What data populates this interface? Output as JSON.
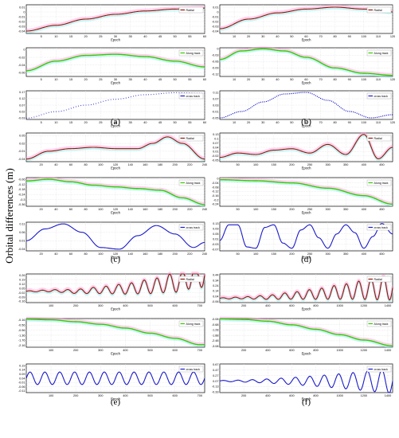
{
  "figure": {
    "ylabel": "Orbital differences (m)",
    "colors": {
      "radial": "#8b1a0a",
      "along": "#33cc00",
      "cross": "#1a1acc",
      "fuzz_pink": "#ff9ad6",
      "fuzz_cyan": "#7fe8e8",
      "grid": "#d8d8d8"
    }
  },
  "chart_data": [
    {
      "type": "line",
      "panel_label": "(a)",
      "subplots": [
        {
          "series": "Radial",
          "xlabel": "Epoch",
          "xlim": [
            0,
            60
          ],
          "xticks": [
            "5",
            "10",
            "15",
            "20",
            "25",
            "30",
            "35",
            "40",
            "45",
            "50",
            "55",
            "60"
          ],
          "yticks": [
            "0.01",
            "0",
            "-0.01",
            "-0.02",
            "-0.03",
            "-0.04"
          ],
          "ylim": [
            -0.045,
            0.015
          ],
          "x": [
            0,
            10,
            20,
            30,
            40,
            50,
            60
          ],
          "y": [
            -0.04,
            -0.028,
            -0.015,
            -0.005,
            0.002,
            0.006,
            0.008
          ]
        },
        {
          "series": "Along track",
          "xlabel": "Epoch",
          "xlim": [
            0,
            60
          ],
          "xticks": [
            "5",
            "10",
            "15",
            "20",
            "25",
            "30",
            "35",
            "40",
            "45",
            "50",
            "55",
            "60"
          ],
          "yticks": [
            "0",
            "-0.02",
            "-0.04",
            "-0.06"
          ],
          "ylim": [
            -0.07,
            0.005
          ],
          "x": [
            0,
            10,
            20,
            30,
            40,
            50,
            60
          ],
          "y": [
            -0.055,
            -0.03,
            -0.015,
            -0.012,
            -0.018,
            -0.03,
            -0.045
          ]
        },
        {
          "series": "cross track",
          "xlabel": "Epoch",
          "xlim": [
            0,
            60
          ],
          "xticks": [
            "5",
            "10",
            "15",
            "20",
            "25",
            "30",
            "35",
            "40",
            "45",
            "50",
            "55",
            "60"
          ],
          "yticks": [
            "0.17",
            "0.12",
            "0.07",
            "0.02",
            "-0.03"
          ],
          "ylim": [
            -0.04,
            0.18
          ],
          "x": [
            0,
            10,
            20,
            30,
            40,
            50,
            60
          ],
          "y": [
            -0.03,
            0.02,
            0.07,
            0.115,
            0.15,
            0.165,
            0.16
          ]
        }
      ]
    },
    {
      "type": "line",
      "panel_label": "(b)",
      "subplots": [
        {
          "series": "Radial",
          "xlabel": "Epoch",
          "xlim": [
            0,
            120
          ],
          "xticks": [
            "10",
            "20",
            "30",
            "40",
            "50",
            "60",
            "70",
            "80",
            "90",
            "100",
            "110",
            "120"
          ],
          "yticks": [
            "0.01",
            "0",
            "-0.01",
            "-0.02",
            "-0.03",
            "-0.04"
          ],
          "ylim": [
            -0.045,
            0.015
          ],
          "x": [
            0,
            20,
            40,
            60,
            80,
            100,
            120
          ],
          "y": [
            -0.035,
            -0.015,
            -0.002,
            0.006,
            0.01,
            0.006,
            0.0
          ]
        },
        {
          "series": "Along track",
          "xlabel": "Epoch",
          "xlim": [
            0,
            120
          ],
          "xticks": [
            "10",
            "20",
            "30",
            "40",
            "50",
            "60",
            "70",
            "80",
            "90",
            "100",
            "110",
            "120"
          ],
          "yticks": [
            "0",
            "-0.03",
            "-0.06",
            "-0.09",
            "-0.12"
          ],
          "ylim": [
            -0.13,
            0.005
          ],
          "x": [
            0,
            15,
            30,
            45,
            60,
            80,
            100,
            120
          ],
          "y": [
            -0.05,
            -0.01,
            0.0,
            -0.01,
            -0.04,
            -0.09,
            -0.115,
            -0.125
          ]
        },
        {
          "series": "cross track",
          "xlabel": "Epoch",
          "xlim": [
            0,
            120
          ],
          "xticks": [
            "10",
            "20",
            "30",
            "40",
            "50",
            "60",
            "70",
            "80",
            "90",
            "100",
            "110",
            "120"
          ],
          "yticks": [
            "0.11",
            "0.07",
            "0.03",
            "-0.01",
            "-0.05"
          ],
          "ylim": [
            -0.06,
            0.12
          ],
          "x": [
            0,
            15,
            30,
            45,
            60,
            75,
            90,
            105,
            120
          ],
          "y": [
            -0.05,
            -0.01,
            0.05,
            0.1,
            0.11,
            0.06,
            -0.01,
            -0.05,
            -0.03
          ]
        }
      ]
    },
    {
      "type": "line",
      "panel_label": "(c)",
      "subplots": [
        {
          "series": "Radial",
          "xlabel": "Epoch",
          "xlim": [
            0,
            240
          ],
          "xticks": [
            "20",
            "40",
            "60",
            "80",
            "100",
            "120",
            "140",
            "160",
            "180",
            "200",
            "220",
            "240"
          ],
          "yticks": [
            "0.05",
            "0.02",
            "-0.01",
            "-0.04"
          ],
          "ylim": [
            -0.05,
            0.06
          ],
          "x": [
            0,
            30,
            60,
            90,
            120,
            150,
            170,
            190,
            210,
            240
          ],
          "y": [
            -0.04,
            -0.01,
            0.0,
            0.005,
            0.0,
            0.0,
            0.02,
            0.045,
            0.02,
            -0.04
          ]
        },
        {
          "series": "Along track",
          "xlabel": "Epoch",
          "xlim": [
            0,
            240
          ],
          "xticks": [
            "20",
            "40",
            "60",
            "80",
            "100",
            "120",
            "140",
            "160",
            "180",
            "200",
            "220",
            "240"
          ],
          "yticks": [
            "-0.06",
            "-0.12",
            "-0.18",
            "-0.24",
            "-0.3",
            "-0.36"
          ],
          "ylim": [
            -0.38,
            -0.04
          ],
          "x": [
            0,
            30,
            60,
            90,
            120,
            150,
            180,
            210,
            240
          ],
          "y": [
            -0.08,
            -0.06,
            -0.09,
            -0.13,
            -0.15,
            -0.17,
            -0.19,
            -0.28,
            -0.36
          ]
        },
        {
          "series": "cross track",
          "xlabel": "Epoch",
          "xlim": [
            0,
            240
          ],
          "xticks": [
            "20",
            "40",
            "60",
            "80",
            "100",
            "120",
            "140",
            "160",
            "180",
            "200",
            "220",
            "240"
          ],
          "yticks": [
            "0.11",
            "0.06",
            "0.01",
            "-0.04"
          ],
          "ylim": [
            -0.05,
            0.12
          ],
          "x": [
            0,
            25,
            50,
            75,
            100,
            125,
            150,
            175,
            200,
            225,
            240
          ],
          "y": [
            0.01,
            0.08,
            0.11,
            0.06,
            -0.03,
            -0.04,
            0.04,
            0.1,
            0.05,
            -0.03,
            0.0
          ]
        }
      ]
    },
    {
      "type": "line",
      "panel_label": "(d)",
      "subplots": [
        {
          "series": "Radial",
          "xlabel": "Epoch",
          "xlim": [
            0,
            480
          ],
          "xticks": [
            "50",
            "100",
            "150",
            "200",
            "250",
            "300",
            "350",
            "400",
            "450"
          ],
          "yticks": [
            "0.13",
            "0.1",
            "0.07",
            "0.04",
            "0.01",
            "-0.02",
            "-0.05"
          ],
          "ylim": [
            -0.06,
            0.14
          ],
          "x": [
            0,
            50,
            100,
            150,
            200,
            250,
            300,
            350,
            400,
            440,
            480
          ],
          "y": [
            -0.03,
            0.0,
            -0.01,
            0.02,
            0.03,
            0.0,
            0.06,
            -0.01,
            0.13,
            -0.04,
            0.04
          ]
        },
        {
          "series": "Along track",
          "xlabel": "Epoch",
          "xlim": [
            0,
            480
          ],
          "xticks": [
            "50",
            "100",
            "150",
            "200",
            "250",
            "300",
            "350",
            "400",
            "450"
          ],
          "yticks": [
            "0",
            "-0.04",
            "-0.08",
            "-0.12",
            "-0.16",
            "-0.2",
            "-0.24"
          ],
          "ylim": [
            -0.26,
            0.01
          ],
          "x": [
            0,
            100,
            200,
            300,
            400,
            480
          ],
          "y": [
            -0.01,
            -0.02,
            -0.04,
            -0.09,
            -0.16,
            -0.24
          ]
        },
        {
          "series": "cross track",
          "xlabel": "Epoch",
          "xlim": [
            0,
            480
          ],
          "xticks": [
            "50",
            "100",
            "150",
            "200",
            "250",
            "300",
            "350",
            "400",
            "450"
          ],
          "yticks": [
            "0.13",
            "0.09",
            "0.05",
            "0.01",
            "-0.03",
            "-0.07"
          ],
          "ylim": [
            -0.08,
            0.14
          ],
          "x": [
            0,
            25,
            50,
            75,
            100,
            125,
            150,
            175,
            200,
            225,
            250,
            275,
            300,
            325,
            350,
            375,
            400,
            425,
            450,
            480
          ],
          "y": [
            0.0,
            0.12,
            0.12,
            -0.05,
            -0.06,
            0.1,
            0.12,
            -0.02,
            -0.06,
            0.08,
            0.12,
            0.02,
            -0.06,
            0.05,
            0.12,
            0.06,
            -0.06,
            0.03,
            0.13,
            0.05
          ]
        }
      ]
    },
    {
      "type": "line",
      "panel_label": "(e)",
      "subplots": [
        {
          "series": "Radial",
          "xlabel": "Epoch",
          "xlim": [
            0,
            720
          ],
          "xticks": [
            "100",
            "200",
            "300",
            "400",
            "500",
            "600",
            "700"
          ],
          "yticks": [
            "0.26",
            "0.19",
            "0.12",
            "0.05",
            "-0.02",
            "-0.09",
            "-0.16"
          ],
          "ylim": [
            -0.18,
            0.28
          ],
          "x": [
            0,
            100,
            200,
            300,
            400,
            500,
            600,
            700
          ],
          "y": [
            0.0,
            0.01,
            0.0,
            0.02,
            0.04,
            0.08,
            0.14,
            0.26
          ],
          "oscillation": "growing"
        },
        {
          "series": "Along track",
          "xlabel": "Epoch",
          "xlim": [
            0,
            720
          ],
          "xticks": [
            "100",
            "200",
            "300",
            "400",
            "500",
            "600",
            "700"
          ],
          "yticks": [
            "-0.16",
            "-0.56",
            "-0.96",
            "-1.36",
            "-1.76",
            "-2.16"
          ],
          "ylim": [
            -2.3,
            -0.05
          ],
          "x": [
            0,
            100,
            200,
            300,
            400,
            500,
            600,
            700
          ],
          "y": [
            -0.1,
            -0.15,
            -0.3,
            -0.5,
            -0.8,
            -1.2,
            -1.6,
            -2.1
          ]
        },
        {
          "series": "cross track",
          "xlabel": "Epoch",
          "xlim": [
            0,
            720
          ],
          "xticks": [
            "100",
            "200",
            "300",
            "400",
            "500",
            "600",
            "700"
          ],
          "yticks": [
            "0.19",
            "0.14",
            "0.09",
            "0.04",
            "-0.01",
            "-0.06",
            "-0.11"
          ],
          "ylim": [
            -0.13,
            0.21
          ],
          "x": [
            0,
            100,
            200,
            300,
            400,
            500,
            600,
            700
          ],
          "y": [
            0.04,
            0.04,
            0.04,
            0.04,
            0.04,
            0.04,
            0.04,
            0.04
          ],
          "oscillation": "steady"
        }
      ]
    },
    {
      "type": "line",
      "panel_label": "(f)",
      "subplots": [
        {
          "series": "Radial",
          "xlabel": "Epoch",
          "xlim": [
            0,
            1440
          ],
          "xticks": [
            "200",
            "400",
            "600",
            "800",
            "1000",
            "1200",
            "1400"
          ],
          "yticks": [
            "0.44",
            "0.34",
            "0.24",
            "0.14",
            "0.04",
            "-0.06"
          ],
          "ylim": [
            -0.08,
            0.46
          ],
          "x": [
            0,
            200,
            400,
            600,
            800,
            1000,
            1200,
            1440
          ],
          "y": [
            0.0,
            0.01,
            0.02,
            0.05,
            0.08,
            0.12,
            0.16,
            0.2
          ],
          "oscillation": "growing"
        },
        {
          "series": "Along track",
          "xlabel": "Epoch",
          "xlim": [
            0,
            1440
          ],
          "xticks": [
            "200",
            "400",
            "600",
            "800",
            "1000",
            "1200",
            "1400"
          ],
          "yticks": [
            "-0.08",
            "-0.68",
            "-1.28",
            "-1.88",
            "-2.48",
            "-3.08"
          ],
          "ylim": [
            -3.2,
            0.0
          ],
          "x": [
            0,
            200,
            400,
            600,
            800,
            1000,
            1200,
            1440
          ],
          "y": [
            -0.05,
            -0.1,
            -0.3,
            -0.7,
            -1.2,
            -1.8,
            -2.4,
            -3.05
          ]
        },
        {
          "series": "cross track",
          "xlabel": "Epoch",
          "xlim": [
            0,
            1440
          ],
          "xticks": [
            "200",
            "400",
            "600",
            "800",
            "1000",
            "1200",
            "1400"
          ],
          "yticks": [
            "0.67",
            "0.47",
            "0.27",
            "0.07",
            "-0.13",
            "-0.33"
          ],
          "ylim": [
            -0.35,
            0.69
          ],
          "x": [
            0,
            200,
            400,
            600,
            800,
            1000,
            1200,
            1440
          ],
          "y": [
            0.07,
            0.07,
            0.07,
            0.07,
            0.07,
            0.07,
            0.07,
            0.07
          ],
          "oscillation": "growing"
        }
      ]
    }
  ]
}
